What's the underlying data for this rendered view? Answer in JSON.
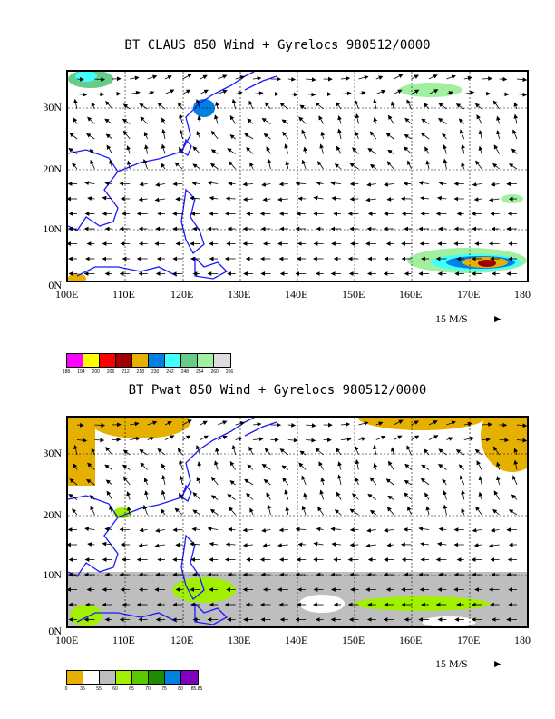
{
  "panels": [
    {
      "title": "BT CLAUS 850 Wind + Gyrelocs 980512/0000",
      "x_ticks": [
        "100E",
        "110E",
        "120E",
        "130E",
        "140E",
        "150E",
        "160E",
        "170E",
        "180"
      ],
      "y_ticks": [
        "30N",
        "20N",
        "10N",
        "0N"
      ],
      "ref_vector": "15 M/S",
      "colorbar": {
        "colors": [
          "#ff00ff",
          "#ffff00",
          "#ff0000",
          "#a00000",
          "#e6b000",
          "#0080e0",
          "#40ffff",
          "#66cc88",
          "#a0f0a0",
          "#dddddd"
        ],
        "labels": [
          "188",
          "194",
          "200",
          "206",
          "212",
          "218",
          "230",
          "242",
          "248",
          "254",
          "260",
          "266"
        ]
      }
    },
    {
      "title": "BT Pwat 850 Wind + Gyrelocs 980512/0000",
      "x_ticks": [
        "100E",
        "110E",
        "120E",
        "130E",
        "140E",
        "150E",
        "160E",
        "170E",
        "180"
      ],
      "y_ticks": [
        "30N",
        "20N",
        "10N",
        "0N"
      ],
      "ref_vector": "15 M/S",
      "colorbar": {
        "colors": [
          "#e6b000",
          "#ffffff",
          "#bebebe",
          "#a0f000",
          "#5cc800",
          "#1e8c00",
          "#0080e0",
          "#8000c0"
        ],
        "labels": [
          "0",
          "35",
          "55",
          "60",
          "65",
          "70",
          "75",
          "80",
          "85.85"
        ]
      }
    }
  ]
}
